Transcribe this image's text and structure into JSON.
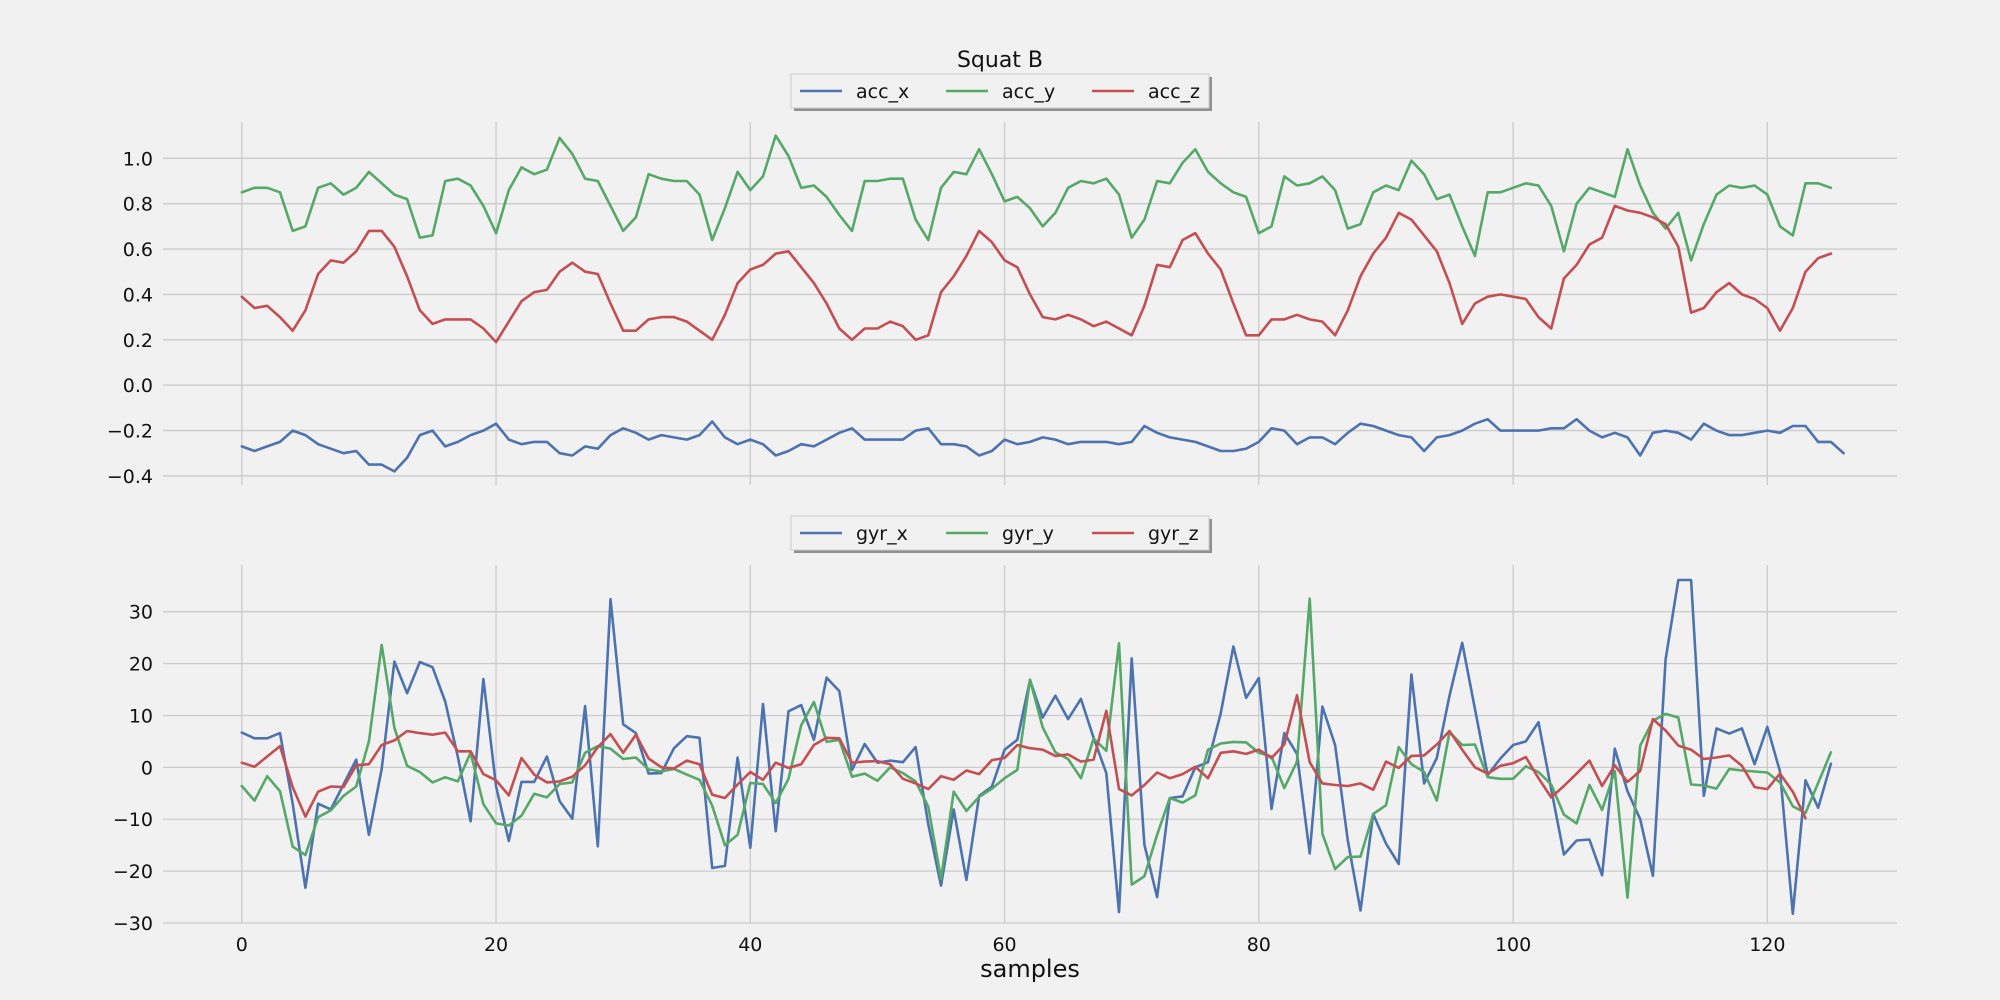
{
  "chart_data": [
    {
      "type": "line",
      "title": "Squat B",
      "xlabel": "",
      "ylabel": "",
      "xlim": [
        -6.2,
        130.2
      ],
      "ylim": [
        -0.44,
        1.16
      ],
      "xticks": [
        0,
        20,
        40,
        60,
        80,
        100,
        120
      ],
      "yticks": [
        -0.4,
        -0.2,
        0.0,
        0.2,
        0.4,
        0.6,
        0.8,
        1.0
      ],
      "ytick_labels": [
        "−0.4",
        "−0.2",
        "0.0",
        "0.2",
        "0.4",
        "0.6",
        "0.8",
        "1.0"
      ],
      "grid": true,
      "legend": "top-center",
      "series": [
        {
          "name": "acc_x",
          "color": "#4c72b0",
          "values": [
            -0.27,
            -0.29,
            -0.27,
            -0.25,
            -0.2,
            -0.22,
            -0.26,
            -0.28,
            -0.3,
            -0.29,
            -0.35,
            -0.35,
            -0.38,
            -0.32,
            -0.22,
            -0.2,
            -0.27,
            -0.25,
            -0.22,
            -0.2,
            -0.17,
            -0.24,
            -0.26,
            -0.25,
            -0.25,
            -0.3,
            -0.31,
            -0.27,
            -0.28,
            -0.22,
            -0.19,
            -0.21,
            -0.24,
            -0.22,
            -0.23,
            -0.24,
            -0.22,
            -0.16,
            -0.23,
            -0.26,
            -0.24,
            -0.26,
            -0.31,
            -0.29,
            -0.26,
            -0.27,
            -0.24,
            -0.21,
            -0.19,
            -0.24,
            -0.24,
            -0.24,
            -0.24,
            -0.2,
            -0.19,
            -0.26,
            -0.26,
            -0.27,
            -0.31,
            -0.29,
            -0.24,
            -0.26,
            -0.25,
            -0.23,
            -0.24,
            -0.26,
            -0.25,
            -0.25,
            -0.25,
            -0.26,
            -0.25,
            -0.18,
            -0.21,
            -0.23,
            -0.24,
            -0.25,
            -0.27,
            -0.29,
            -0.29,
            -0.28,
            -0.25,
            -0.19,
            -0.2,
            -0.26,
            -0.23,
            -0.23,
            -0.26,
            -0.21,
            -0.17,
            -0.18,
            -0.2,
            -0.22,
            -0.23,
            -0.29,
            -0.23,
            -0.22,
            -0.2,
            -0.17,
            -0.15,
            -0.2,
            -0.2,
            -0.2,
            -0.2,
            -0.19,
            -0.19,
            -0.15,
            -0.2,
            -0.23,
            -0.21,
            -0.23,
            -0.31,
            -0.21,
            -0.2,
            -0.21,
            -0.24,
            -0.17,
            -0.2,
            -0.22,
            -0.22,
            -0.21,
            -0.2,
            -0.21,
            -0.18,
            -0.18,
            -0.25,
            -0.25,
            -0.3
          ]
        },
        {
          "name": "acc_y",
          "color": "#55a868",
          "values": [
            0.85,
            0.87,
            0.87,
            0.85,
            0.68,
            0.7,
            0.87,
            0.89,
            0.84,
            0.87,
            0.94,
            0.89,
            0.84,
            0.82,
            0.65,
            0.66,
            0.9,
            0.91,
            0.88,
            0.79,
            0.67,
            0.86,
            0.96,
            0.93,
            0.95,
            1.09,
            1.02,
            0.91,
            0.9,
            0.79,
            0.68,
            0.74,
            0.93,
            0.91,
            0.9,
            0.9,
            0.84,
            0.64,
            0.78,
            0.94,
            0.86,
            0.92,
            1.1,
            1.01,
            0.87,
            0.88,
            0.83,
            0.75,
            0.68,
            0.9,
            0.9,
            0.91,
            0.91,
            0.73,
            0.64,
            0.87,
            0.94,
            0.93,
            1.04,
            0.93,
            0.81,
            0.83,
            0.78,
            0.7,
            0.76,
            0.87,
            0.9,
            0.89,
            0.91,
            0.84,
            0.65,
            0.73,
            0.9,
            0.89,
            0.98,
            1.04,
            0.94,
            0.89,
            0.85,
            0.83,
            0.67,
            0.7,
            0.92,
            0.88,
            0.89,
            0.92,
            0.86,
            0.69,
            0.71,
            0.85,
            0.88,
            0.86,
            0.99,
            0.93,
            0.82,
            0.84,
            0.7,
            0.57,
            0.85,
            0.85,
            0.87,
            0.89,
            0.88,
            0.79,
            0.59,
            0.8,
            0.87,
            0.85,
            0.83,
            1.04,
            0.88,
            0.76,
            0.69,
            0.76,
            0.55,
            0.71,
            0.84,
            0.88,
            0.87,
            0.88,
            0.84,
            0.7,
            0.66,
            0.89,
            0.89,
            0.87
          ]
        },
        {
          "name": "acc_z",
          "color": "#c44e52",
          "values": [
            0.39,
            0.34,
            0.35,
            0.3,
            0.24,
            0.33,
            0.49,
            0.55,
            0.54,
            0.59,
            0.68,
            0.68,
            0.61,
            0.48,
            0.33,
            0.27,
            0.29,
            0.29,
            0.29,
            0.25,
            0.19,
            0.28,
            0.37,
            0.41,
            0.42,
            0.5,
            0.54,
            0.5,
            0.49,
            0.36,
            0.24,
            0.24,
            0.29,
            0.3,
            0.3,
            0.28,
            0.24,
            0.2,
            0.31,
            0.45,
            0.51,
            0.53,
            0.58,
            0.59,
            0.52,
            0.45,
            0.36,
            0.25,
            0.2,
            0.25,
            0.25,
            0.28,
            0.26,
            0.2,
            0.22,
            0.41,
            0.48,
            0.57,
            0.68,
            0.63,
            0.55,
            0.52,
            0.4,
            0.3,
            0.29,
            0.31,
            0.29,
            0.26,
            0.28,
            0.25,
            0.22,
            0.35,
            0.53,
            0.52,
            0.64,
            0.67,
            0.58,
            0.51,
            0.36,
            0.22,
            0.22,
            0.29,
            0.29,
            0.31,
            0.29,
            0.28,
            0.22,
            0.33,
            0.48,
            0.58,
            0.65,
            0.76,
            0.73,
            0.66,
            0.59,
            0.45,
            0.27,
            0.36,
            0.39,
            0.4,
            0.39,
            0.38,
            0.3,
            0.25,
            0.47,
            0.53,
            0.62,
            0.65,
            0.79,
            0.77,
            0.76,
            0.74,
            0.71,
            0.61,
            0.32,
            0.34,
            0.41,
            0.45,
            0.4,
            0.38,
            0.34,
            0.24,
            0.34,
            0.5,
            0.56,
            0.58
          ]
        }
      ]
    },
    {
      "type": "line",
      "title": "",
      "xlabel": "samples",
      "ylabel": "",
      "xlim": [
        -6.2,
        130.2
      ],
      "ylim": [
        -30,
        39
      ],
      "xticks": [
        0,
        20,
        40,
        60,
        80,
        100,
        120
      ],
      "xtick_labels": [
        "0",
        "20",
        "40",
        "60",
        "80",
        "100",
        "120"
      ],
      "yticks": [
        -30,
        -20,
        -10,
        0,
        10,
        20,
        30
      ],
      "ytick_labels": [
        "−30",
        "−20",
        "−10",
        "0",
        "10",
        "20",
        "30"
      ],
      "grid": true,
      "legend": "top-center",
      "series": [
        {
          "name": "gyr_x",
          "color": "#4c72b0",
          "values": [
            6.7,
            5.6,
            5.6,
            6.6,
            -7,
            -23.2,
            -7,
            -8.1,
            -3.3,
            1.5,
            -13,
            -0.3,
            20.4,
            14.3,
            20.3,
            19.3,
            12.7,
            2,
            -10.4,
            17,
            -3.7,
            -14.2,
            -2.8,
            -2.8,
            2.1,
            -6.5,
            -9.9,
            11.8,
            -15.2,
            32.4,
            8.3,
            6.6,
            -1.2,
            -1.1,
            3.7,
            6,
            5.7,
            -19.4,
            -19,
            1.9,
            -15.5,
            12.2,
            -12.3,
            10.8,
            12,
            5.3,
            17.3,
            14.7,
            -0.5,
            4.5,
            0.9,
            1.3,
            1,
            3.9,
            -11,
            -22.8,
            -8.1,
            -21.7,
            -5.5,
            -3.7,
            3.4,
            5.3,
            16.8,
            9.6,
            13.8,
            9.3,
            13.2,
            5.7,
            -1.1,
            -27.9,
            21,
            -14.9,
            -25,
            -5.9,
            -5.6,
            0,
            1,
            10.4,
            23.3,
            13.4,
            17.2,
            -8,
            6.6,
            2.6,
            -16.6,
            11.7,
            4.3,
            -14.1,
            -27.6,
            -9,
            -14.7,
            -18.6,
            17.9,
            -3.1,
            1.8,
            13.8,
            24,
            11.3,
            -1.5,
            1.7,
            4.3,
            5,
            8.7,
            -4.2,
            -16.8,
            -14.1,
            -13.9,
            -20.8,
            3.6,
            -4.6,
            -10,
            -20.9,
            20.8,
            36.1,
            36.1,
            -5.5,
            7.5,
            6.5,
            7.5,
            0.6,
            7.8,
            -0.8,
            -28.2,
            -2.5,
            -7.8,
            0.7
          ]
        },
        {
          "name": "gyr_y",
          "color": "#55a868",
          "values": [
            -3.6,
            -6.4,
            -1.7,
            -4.6,
            -15.3,
            -16.9,
            -9.6,
            -8.3,
            -5.5,
            -3.7,
            5,
            23.6,
            7.6,
            0.3,
            -0.9,
            -2.9,
            -1.9,
            -2.7,
            2.8,
            -7.1,
            -10.8,
            -11.2,
            -9.3,
            -5.1,
            -5.8,
            -3.2,
            -2.9,
            2.8,
            4.1,
            3.6,
            1.6,
            1.9,
            -0.4,
            -0.8,
            -0.3,
            -1.4,
            -2.4,
            -7.4,
            -15,
            -13,
            -3,
            -3.2,
            -6.9,
            -2.2,
            8.1,
            12.6,
            4.9,
            5.3,
            -1.8,
            -1.2,
            -2.6,
            0,
            -1.1,
            -2.7,
            -7.6,
            -21.5,
            -4.7,
            -8.4,
            -5.7,
            -4.1,
            -2.1,
            -0.5,
            16.9,
            7.7,
            2.9,
            1.6,
            -2.1,
            5.5,
            3.2,
            23.9,
            -22.6,
            -21,
            -13,
            -5.9,
            -6.8,
            -5.4,
            3.4,
            4.6,
            4.9,
            4.8,
            2.8,
            2.1,
            -4,
            1.1,
            32.5,
            -12.8,
            -19.6,
            -17.3,
            -17.2,
            -9,
            -7.3,
            3.9,
            0.6,
            -0.9,
            -6.4,
            6.8,
            4.3,
            4.4,
            -1.9,
            -2.2,
            -2.2,
            0.2,
            -0.9,
            -3.3,
            -9.1,
            -10.8,
            -3.4,
            -8.2,
            -0.7,
            -25.1,
            4.2,
            9,
            10.3,
            9.6,
            -3.3,
            -3.5,
            -4.1,
            -0.3,
            -0.6,
            -0.8,
            -1,
            -2.9,
            -7.5,
            -8.8,
            -3,
            2.9
          ]
        },
        {
          "name": "gyr_z",
          "color": "#c44e52",
          "values": [
            0.9,
            0.1,
            2.1,
            4.1,
            -3.8,
            -9.5,
            -4.7,
            -3.7,
            -3.8,
            0.4,
            0.6,
            4.3,
            5.2,
            7,
            6.6,
            6.3,
            6.7,
            3.1,
            3.1,
            -1.3,
            -2.5,
            -5.4,
            1.8,
            -1.4,
            -2.9,
            -2.7,
            -1.8,
            0.4,
            3.9,
            6.4,
            2.8,
            6.3,
            1.7,
            0,
            -0.2,
            1.3,
            0.6,
            -5.3,
            -5.9,
            -3.3,
            -0.9,
            -2.4,
            0.9,
            -0.1,
            0.6,
            4.3,
            5.7,
            5.6,
            0.9,
            1.1,
            1.2,
            0.6,
            -2.2,
            -3.1,
            -4.2,
            -1.7,
            -2.4,
            -0.6,
            -1.3,
            1.4,
            1.8,
            4.3,
            3.7,
            3.4,
            2.2,
            2.5,
            1.1,
            1.5,
            10.9,
            -4.2,
            -5.4,
            -3.4,
            -1,
            -2.1,
            -1.3,
            0.1,
            -2.1,
            2.8,
            3.1,
            2.6,
            3.4,
            1.8,
            4.4,
            13.9,
            1,
            -3.1,
            -3.4,
            -3.6,
            -3.1,
            -4.3,
            1.1,
            -0.1,
            2.2,
            2.3,
            4.4,
            7,
            3.4,
            0,
            -1.2,
            0.3,
            0.8,
            2,
            -2.1,
            -5.8,
            -3.6,
            -1.2,
            1.3,
            -3.6,
            0.4,
            -2.8,
            -0.7,
            9.3,
            7.1,
            4.2,
            3.4,
            1.6,
            1.9,
            2.3,
            0.3,
            -3.8,
            -4.2,
            -1.2,
            -4.7,
            -9.8
          ]
        }
      ]
    }
  ]
}
